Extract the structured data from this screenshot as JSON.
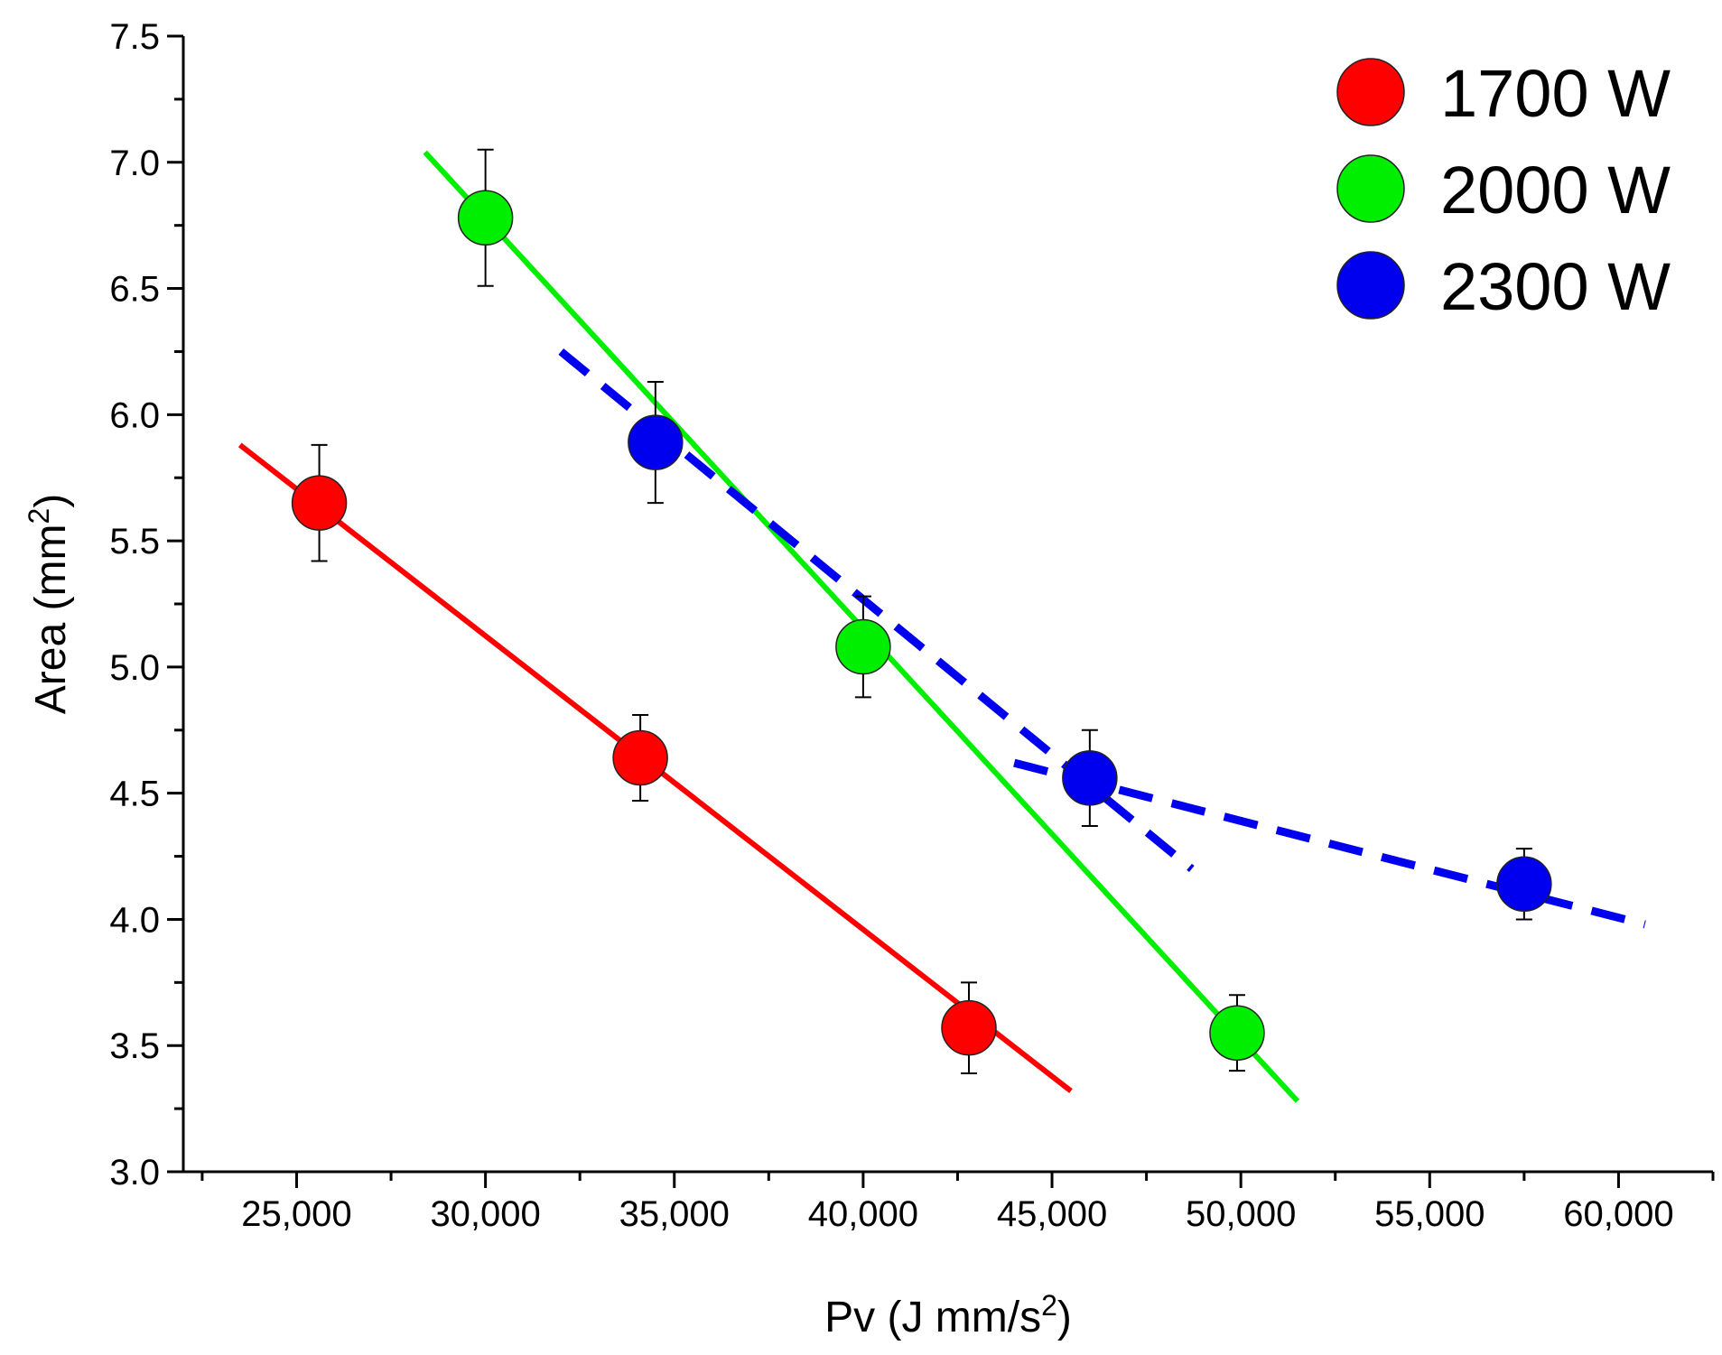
{
  "chart_data": {
    "type": "scatter",
    "title": "",
    "xlabel": "Pv (J mm/s",
    "xlabel_sup": "2",
    "xlabel_end": ")",
    "ylabel": "Area (mm",
    "ylabel_sup": "2",
    "ylabel_end": ")",
    "xlim": [
      22000,
      62500
    ],
    "ylim": [
      3.0,
      7.5
    ],
    "x_ticks": [
      25000,
      30000,
      35000,
      40000,
      45000,
      50000,
      55000,
      60000
    ],
    "x_tick_labels": [
      "25,000",
      "30,000",
      "35,000",
      "40,000",
      "45,000",
      "50,000",
      "55,000",
      "60,000"
    ],
    "y_ticks": [
      3.0,
      3.5,
      4.0,
      4.5,
      5.0,
      5.5,
      6.0,
      6.5,
      7.0,
      7.5
    ],
    "y_tick_labels": [
      "3.0",
      "3.5",
      "4.0",
      "4.5",
      "5.0",
      "5.5",
      "6.0",
      "6.5",
      "7.0",
      "7.5"
    ],
    "legend_position": "top-right",
    "series": [
      {
        "name": "1700 W",
        "color": "#ff0000",
        "x": [
          25600,
          34100,
          42800
        ],
        "y": [
          5.65,
          4.64,
          3.57
        ],
        "err": [
          0.23,
          0.17,
          0.18
        ],
        "fits": [
          {
            "style": "solid",
            "x": [
              23500,
              45500
            ],
            "y": [
              5.88,
              3.32
            ]
          }
        ]
      },
      {
        "name": "2000 W",
        "color": "#00ee00",
        "x": [
          30000,
          40000,
          49900
        ],
        "y": [
          6.78,
          5.08,
          3.55
        ],
        "err": [
          0.27,
          0.2,
          0.15
        ],
        "fits": [
          {
            "style": "solid",
            "x": [
              28400,
              51500
            ],
            "y": [
              7.04,
              3.28
            ]
          }
        ]
      },
      {
        "name": "2300 W",
        "color": "#0000ee",
        "x": [
          34500,
          46000,
          57500
        ],
        "y": [
          5.89,
          4.56,
          4.14
        ],
        "err": [
          0.24,
          0.19,
          0.14
        ],
        "fits": [
          {
            "style": "dashed",
            "x": [
              32000,
              48700
            ],
            "y": [
              6.25,
              4.2
            ]
          },
          {
            "style": "dashed",
            "x": [
              44000,
              60700
            ],
            "y": [
              4.62,
              3.98
            ]
          }
        ]
      }
    ]
  }
}
